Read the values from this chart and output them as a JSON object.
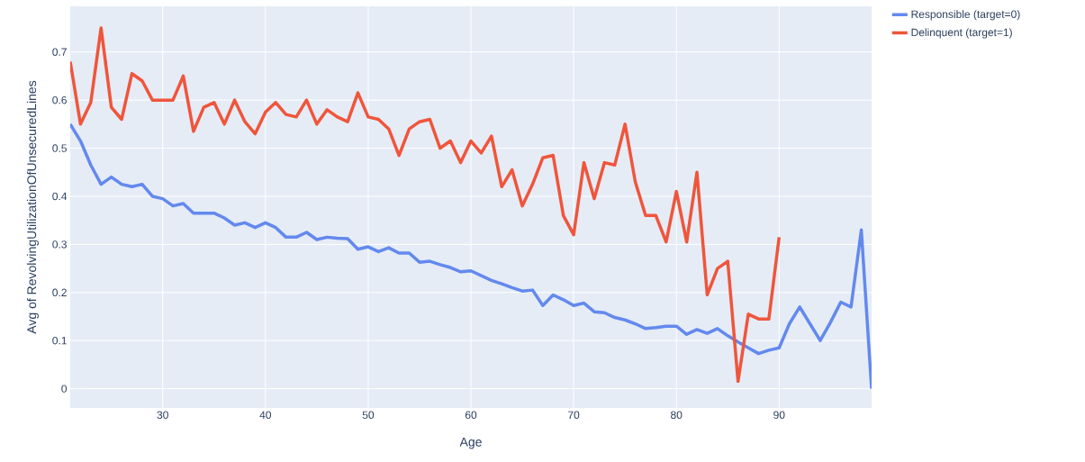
{
  "chart_data": {
    "type": "line",
    "xlabel": "Age",
    "ylabel": "Avg of RevolvingUtilizationOfUnsecuredLines",
    "x": [
      21,
      22,
      23,
      24,
      25,
      26,
      27,
      28,
      29,
      30,
      31,
      32,
      33,
      34,
      35,
      36,
      37,
      38,
      39,
      40,
      41,
      42,
      43,
      44,
      45,
      46,
      47,
      48,
      49,
      50,
      51,
      52,
      53,
      54,
      55,
      56,
      57,
      58,
      59,
      60,
      61,
      62,
      63,
      64,
      65,
      66,
      67,
      68,
      69,
      70,
      71,
      72,
      73,
      74,
      75,
      76,
      77,
      78,
      79,
      80,
      81,
      82,
      83,
      84,
      85,
      86,
      87,
      88,
      89,
      90,
      91,
      92,
      93,
      94,
      95,
      96,
      97,
      98,
      99
    ],
    "series": [
      {
        "name": "Responsible (target=0)",
        "color": "#6389ee",
        "values": [
          0.55,
          0.515,
          0.465,
          0.425,
          0.44,
          0.425,
          0.42,
          0.425,
          0.4,
          0.395,
          0.38,
          0.385,
          0.365,
          0.365,
          0.365,
          0.355,
          0.34,
          0.345,
          0.335,
          0.345,
          0.335,
          0.315,
          0.315,
          0.325,
          0.31,
          0.315,
          0.313,
          0.312,
          0.29,
          0.295,
          0.285,
          0.293,
          0.282,
          0.282,
          0.263,
          0.265,
          0.258,
          0.252,
          0.243,
          0.245,
          0.235,
          0.225,
          0.218,
          0.21,
          0.203,
          0.205,
          0.173,
          0.195,
          0.185,
          0.173,
          0.178,
          0.16,
          0.158,
          0.148,
          0.143,
          0.135,
          0.125,
          0.127,
          0.13,
          0.13,
          0.113,
          0.123,
          0.115,
          0.125,
          0.11,
          0.097,
          0.085,
          0.073,
          0.08,
          0.085,
          0.135,
          0.17,
          0.135,
          0.1,
          0.138,
          0.18,
          0.17,
          0.33,
          0
        ]
      },
      {
        "name": "Delinquent (target=1)",
        "color": "#f0553b",
        "x": [
          21,
          22,
          23,
          24,
          25,
          26,
          27,
          28,
          29,
          30,
          31,
          32,
          33,
          34,
          35,
          36,
          37,
          38,
          39,
          40,
          41,
          42,
          43,
          44,
          45,
          46,
          47,
          48,
          49,
          50,
          51,
          52,
          53,
          54,
          55,
          56,
          57,
          58,
          59,
          60,
          61,
          62,
          63,
          64,
          65,
          66,
          67,
          68,
          69,
          70,
          71,
          72,
          73,
          74,
          75,
          76,
          77,
          78,
          79,
          80,
          81,
          82,
          83,
          84,
          85,
          86,
          87,
          88,
          89,
          90
        ],
        "values": [
          0.68,
          0.55,
          0.595,
          0.75,
          0.585,
          0.56,
          0.655,
          0.64,
          0.6,
          0.6,
          0.6,
          0.65,
          0.535,
          0.585,
          0.595,
          0.55,
          0.6,
          0.555,
          0.53,
          0.575,
          0.595,
          0.57,
          0.565,
          0.6,
          0.55,
          0.58,
          0.565,
          0.555,
          0.615,
          0.565,
          0.56,
          0.54,
          0.485,
          0.54,
          0.555,
          0.56,
          0.5,
          0.515,
          0.47,
          0.515,
          0.49,
          0.525,
          0.42,
          0.455,
          0.38,
          0.425,
          0.48,
          0.485,
          0.36,
          0.32,
          0.47,
          0.395,
          0.47,
          0.465,
          0.55,
          0.43,
          0.36,
          0.36,
          0.305,
          0.41,
          0.305,
          0.45,
          0.195,
          0.25,
          0.265,
          0.015,
          0.155,
          0.145,
          0.145,
          0.315
        ]
      }
    ],
    "xlim": [
      21,
      99
    ],
    "ylim": [
      -0.04,
      0.795
    ],
    "xticks": [
      30,
      40,
      50,
      60,
      70,
      80,
      90
    ],
    "yticks": [
      0,
      0.1,
      0.2,
      0.3,
      0.4,
      0.5,
      0.6,
      0.7
    ],
    "grid": true,
    "legend": "top right"
  }
}
